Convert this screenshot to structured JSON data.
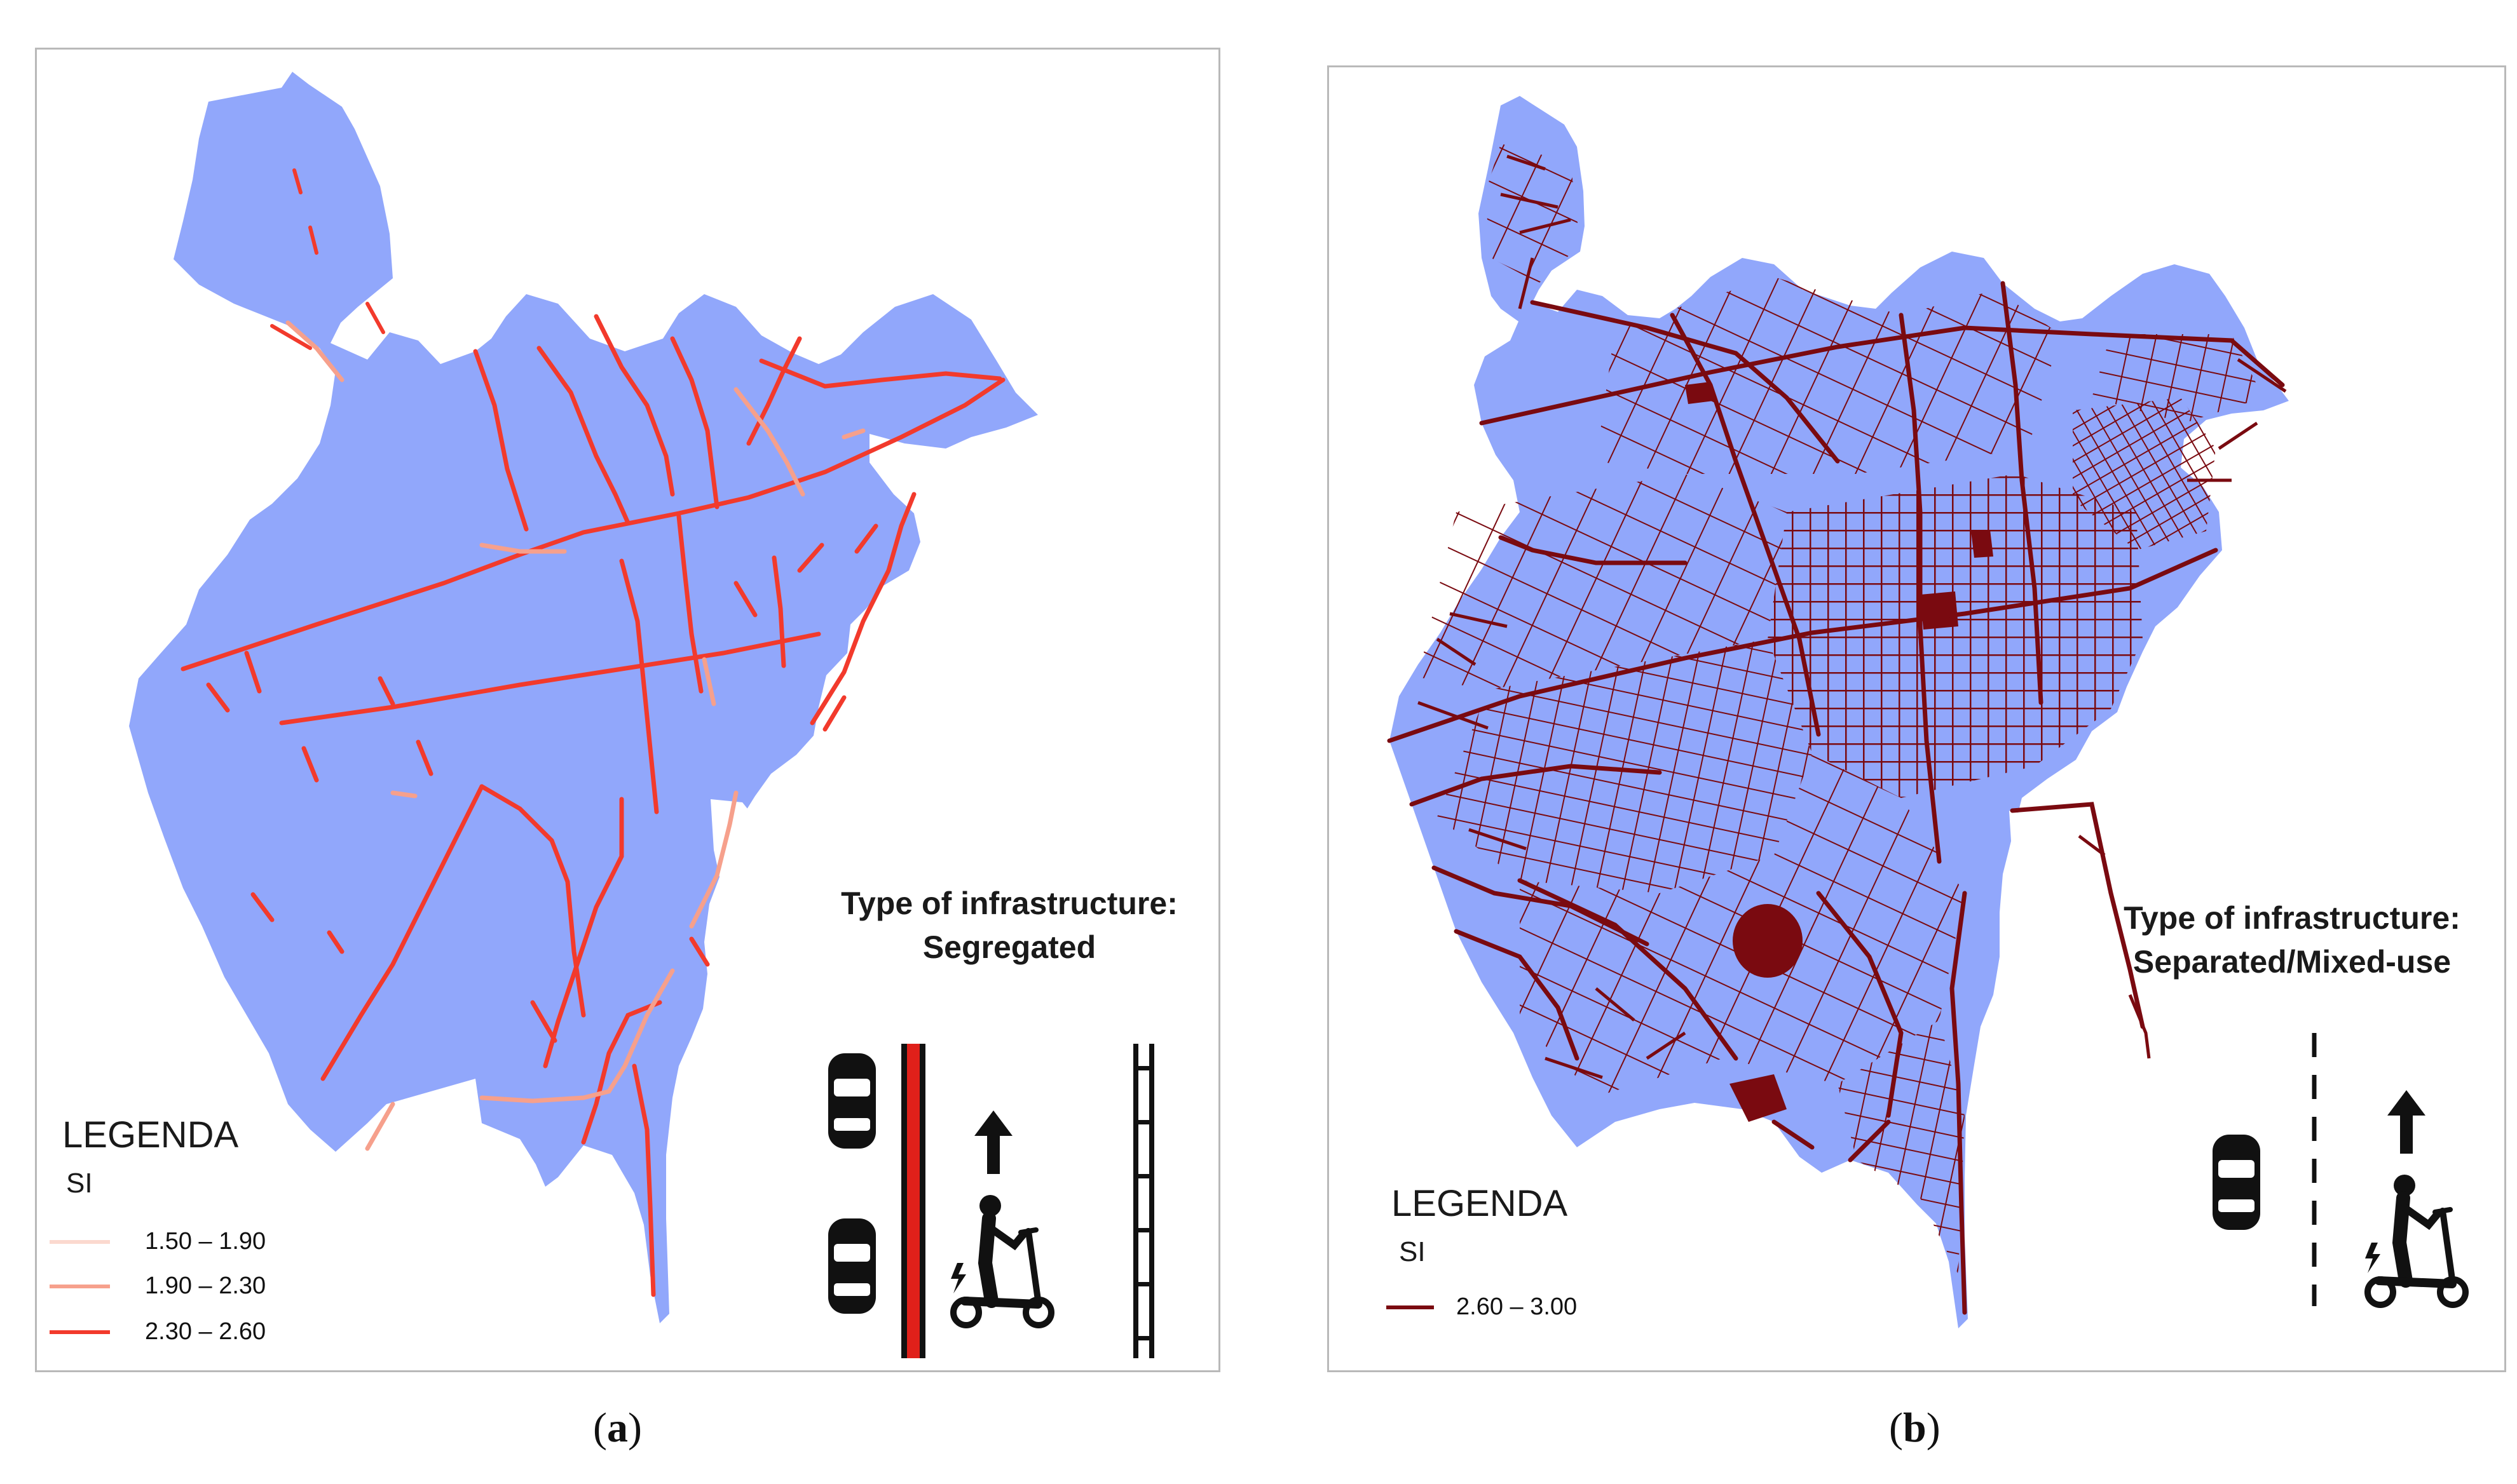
{
  "panels": [
    {
      "id": "a",
      "caption_open": "(",
      "caption_letter": "a",
      "caption_close": ")",
      "legend": {
        "title": "LEGENDA",
        "subtitle": "SI",
        "items": [
          {
            "label": "1.50 – 1.90",
            "color": "#fbd9cf"
          },
          {
            "label": "1.90 – 2.30",
            "color": "#f6a08c"
          },
          {
            "label": "2.30 – 2.60",
            "color": "#f23a2c"
          }
        ]
      },
      "infrastructure": {
        "heading": "Type of infrastructure:",
        "type": "Segregated"
      },
      "icons": [
        "car-icon",
        "car-icon",
        "red-separator-icon",
        "arrow-up-icon",
        "e-scooter-rider-icon",
        "lane-ladder-icon"
      ]
    },
    {
      "id": "b",
      "caption_open": "(",
      "caption_letter": "b",
      "caption_close": ")",
      "legend": {
        "title": "LEGENDA",
        "subtitle": "SI",
        "items": [
          {
            "label": "2.60 – 3.00",
            "color": "#7a0a10"
          }
        ]
      },
      "infrastructure": {
        "heading": "Type of infrastructure:",
        "type": "Separated/Mixed-use"
      },
      "icons": [
        "car-icon",
        "dashed-lane-line-icon",
        "arrow-up-icon",
        "e-scooter-rider-icon"
      ]
    }
  ],
  "colors": {
    "land": "#91a7fb",
    "network_dark": "#7a0a10",
    "border": "#b9b9b9"
  }
}
